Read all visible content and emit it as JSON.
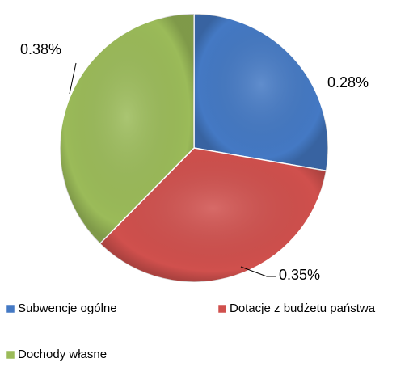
{
  "chart_data": {
    "type": "pie",
    "categories": [
      "Subwencje ogólne",
      "Dotacje z budżetu państwa",
      "Dochody własne"
    ],
    "values": [
      0.28,
      0.35,
      0.38
    ],
    "value_labels": [
      "0.28%",
      "0.35%",
      "0.38%"
    ],
    "colors": [
      "#4479c4",
      "#d0504d",
      "#9bbb59"
    ],
    "legend": "bottom"
  }
}
